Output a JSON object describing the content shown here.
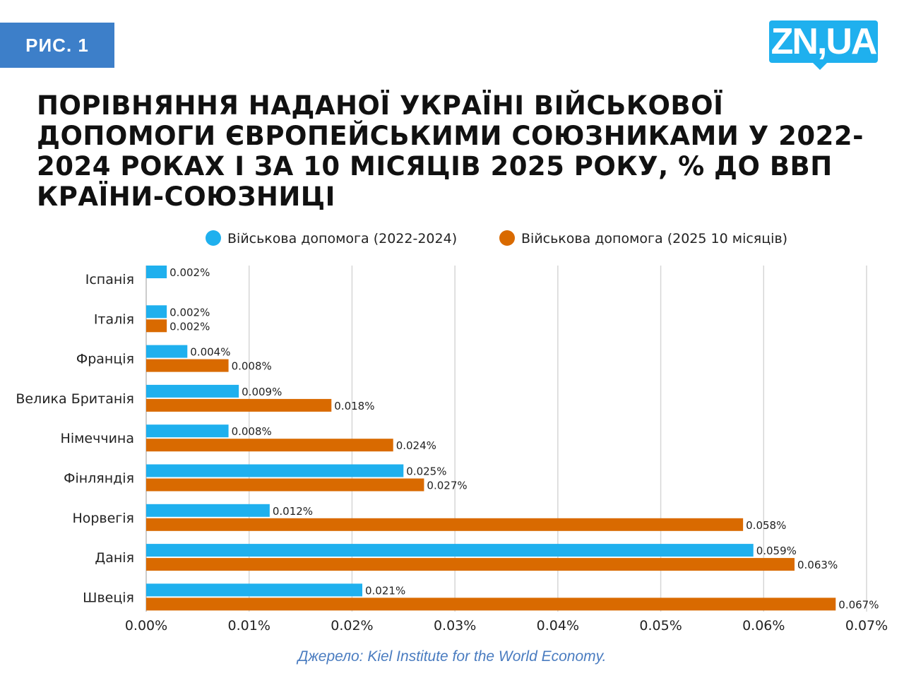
{
  "header": {
    "badge": "РИС. 1",
    "logo": "ZN,UA"
  },
  "title": "ПОРІВНЯННЯ НАДАНОЇ УКРАЇНІ ВІЙСЬКОВОЇ ДОПОМОГИ ЄВРОПЕЙСЬКИМИ СОЮЗНИКАМИ У 2022-2024 РОКАХ І ЗА 10 МІСЯЦІВ 2025 РОКУ, % ДО ВВП КРАЇНИ-СОЮЗНИЦІ",
  "source": "Джерело: Kiel Institute for the World Economy.",
  "chart_data": {
    "type": "bar",
    "orientation": "horizontal",
    "categories": [
      "Іспанія",
      "Італія",
      "Франція",
      "Велика Британія",
      "Німеччина",
      "Фінляндія",
      "Норвегія",
      "Данія",
      "Швеція"
    ],
    "series": [
      {
        "name": "Військова допомога (2022-2024)",
        "color": "#1fb0ee",
        "values": [
          0.002,
          0.002,
          0.004,
          0.009,
          0.008,
          0.025,
          0.012,
          0.059,
          0.021
        ]
      },
      {
        "name": "Військова допомога (2025 10 місяців)",
        "color": "#d96a00",
        "values": [
          null,
          0.002,
          0.008,
          0.018,
          0.024,
          0.027,
          0.058,
          0.063,
          0.067
        ]
      }
    ],
    "xlim": [
      0,
      0.07
    ],
    "xticks": [
      "0.00%",
      "0.01%",
      "0.02%",
      "0.03%",
      "0.04%",
      "0.05%",
      "0.06%",
      "0.07%"
    ],
    "grid": true,
    "legend": "top",
    "value_suffix": "%"
  }
}
